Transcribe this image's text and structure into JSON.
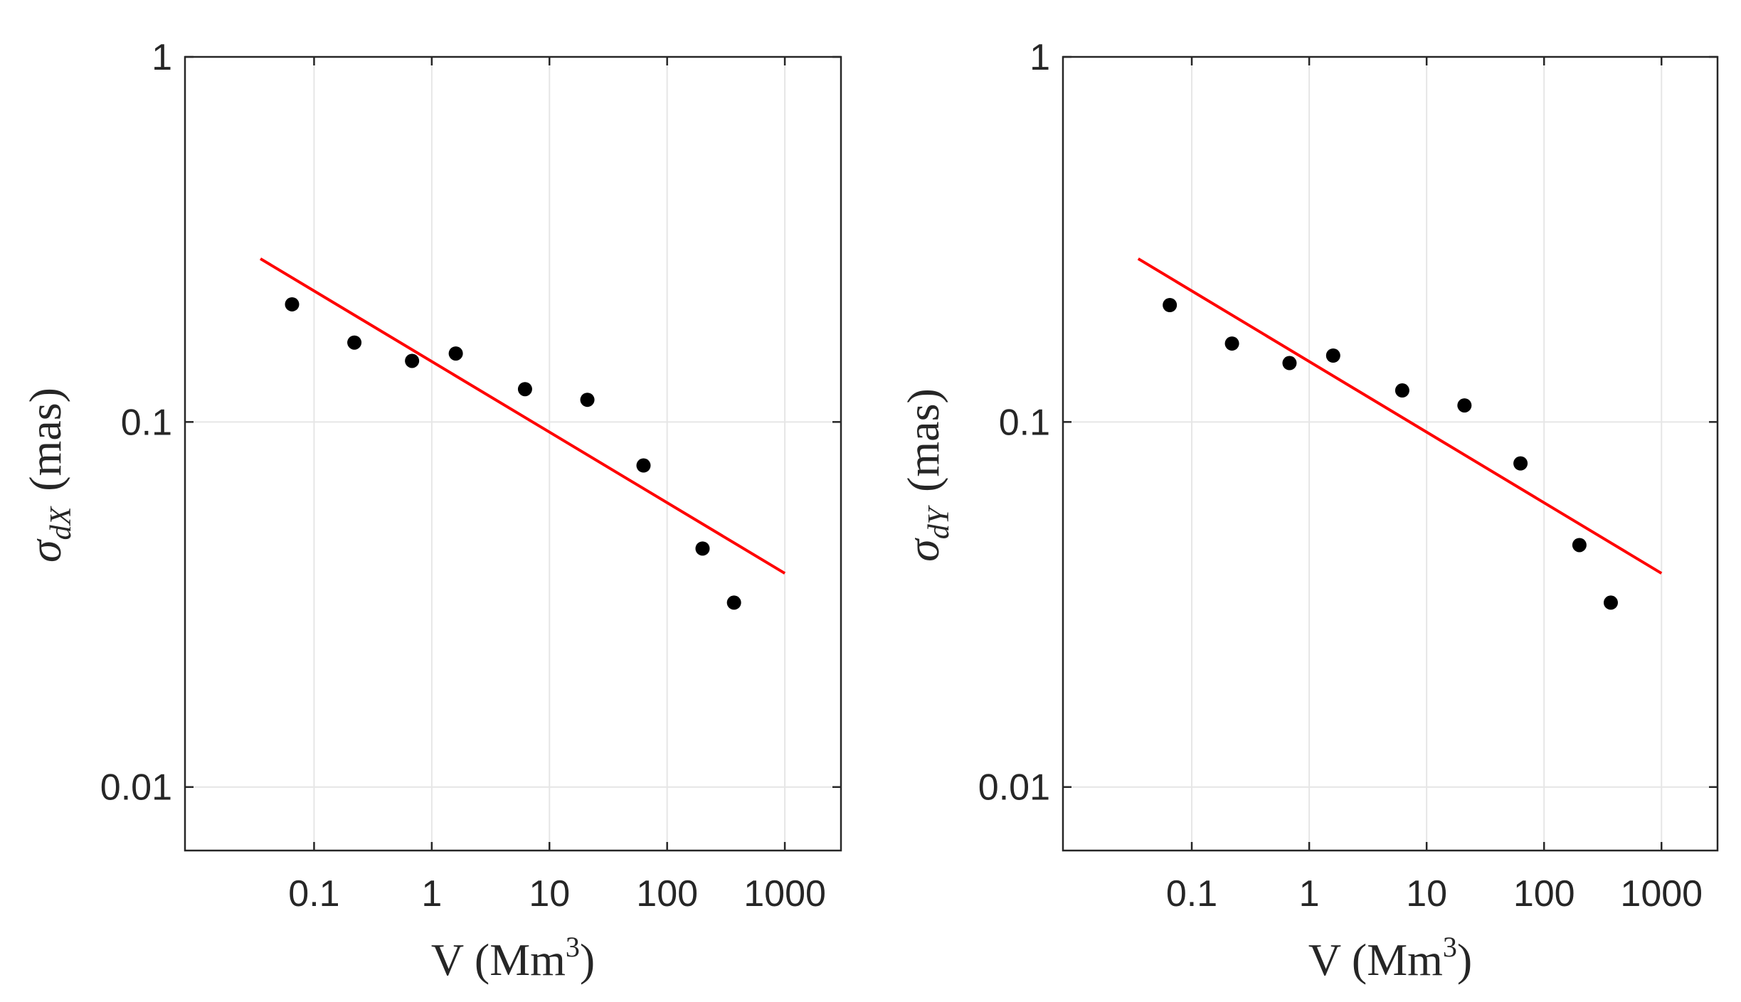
{
  "chart_data": [
    {
      "type": "scatter",
      "x_scale": "log",
      "y_scale": "log",
      "xlim": [
        0.008,
        3000
      ],
      "ylim": [
        0.0067,
        1
      ],
      "xticks": [
        0.1,
        1,
        10,
        100,
        1000
      ],
      "xtick_labels": [
        "0.1",
        "1",
        "10",
        "100",
        "1000"
      ],
      "yticks": [
        0.01,
        0.1,
        1
      ],
      "ytick_labels": [
        "0.01",
        "0.1",
        "1"
      ],
      "xlabel": {
        "main": "V (Mm",
        "sup": "3",
        "end": ")"
      },
      "ylabel": {
        "symbol": "σ",
        "sub": "dX",
        "unit": "(mas)"
      },
      "grid": true,
      "series": [
        {
          "name": "data",
          "style": "markers",
          "color": "#000000",
          "x": [
            0.065,
            0.22,
            0.68,
            1.6,
            6.2,
            21,
            63,
            200,
            370
          ],
          "y": [
            0.21,
            0.165,
            0.147,
            0.154,
            0.123,
            0.115,
            0.076,
            0.045,
            0.032
          ]
        },
        {
          "name": "fit",
          "style": "line",
          "color": "#ff0000",
          "x": [
            0.035,
            1000
          ],
          "y": [
            0.28,
            0.0385
          ]
        }
      ]
    },
    {
      "type": "scatter",
      "x_scale": "log",
      "y_scale": "log",
      "xlim": [
        0.008,
        3000
      ],
      "ylim": [
        0.0067,
        1
      ],
      "xticks": [
        0.1,
        1,
        10,
        100,
        1000
      ],
      "xtick_labels": [
        "0.1",
        "1",
        "10",
        "100",
        "1000"
      ],
      "yticks": [
        0.01,
        0.1,
        1
      ],
      "ytick_labels": [
        "0.01",
        "0.1",
        "1"
      ],
      "xlabel": {
        "main": "V (Mm",
        "sup": "3",
        "end": ")"
      },
      "ylabel": {
        "symbol": "σ",
        "sub": "dY",
        "unit": "(mas)"
      },
      "grid": true,
      "series": [
        {
          "name": "data",
          "style": "markers",
          "color": "#000000",
          "x": [
            0.065,
            0.22,
            0.68,
            1.6,
            6.2,
            21,
            63,
            200,
            370
          ],
          "y": [
            0.209,
            0.164,
            0.145,
            0.152,
            0.122,
            0.111,
            0.077,
            0.046,
            0.032
          ]
        },
        {
          "name": "fit",
          "style": "line",
          "color": "#ff0000",
          "x": [
            0.035,
            1000
          ],
          "y": [
            0.28,
            0.0385
          ]
        }
      ]
    }
  ]
}
